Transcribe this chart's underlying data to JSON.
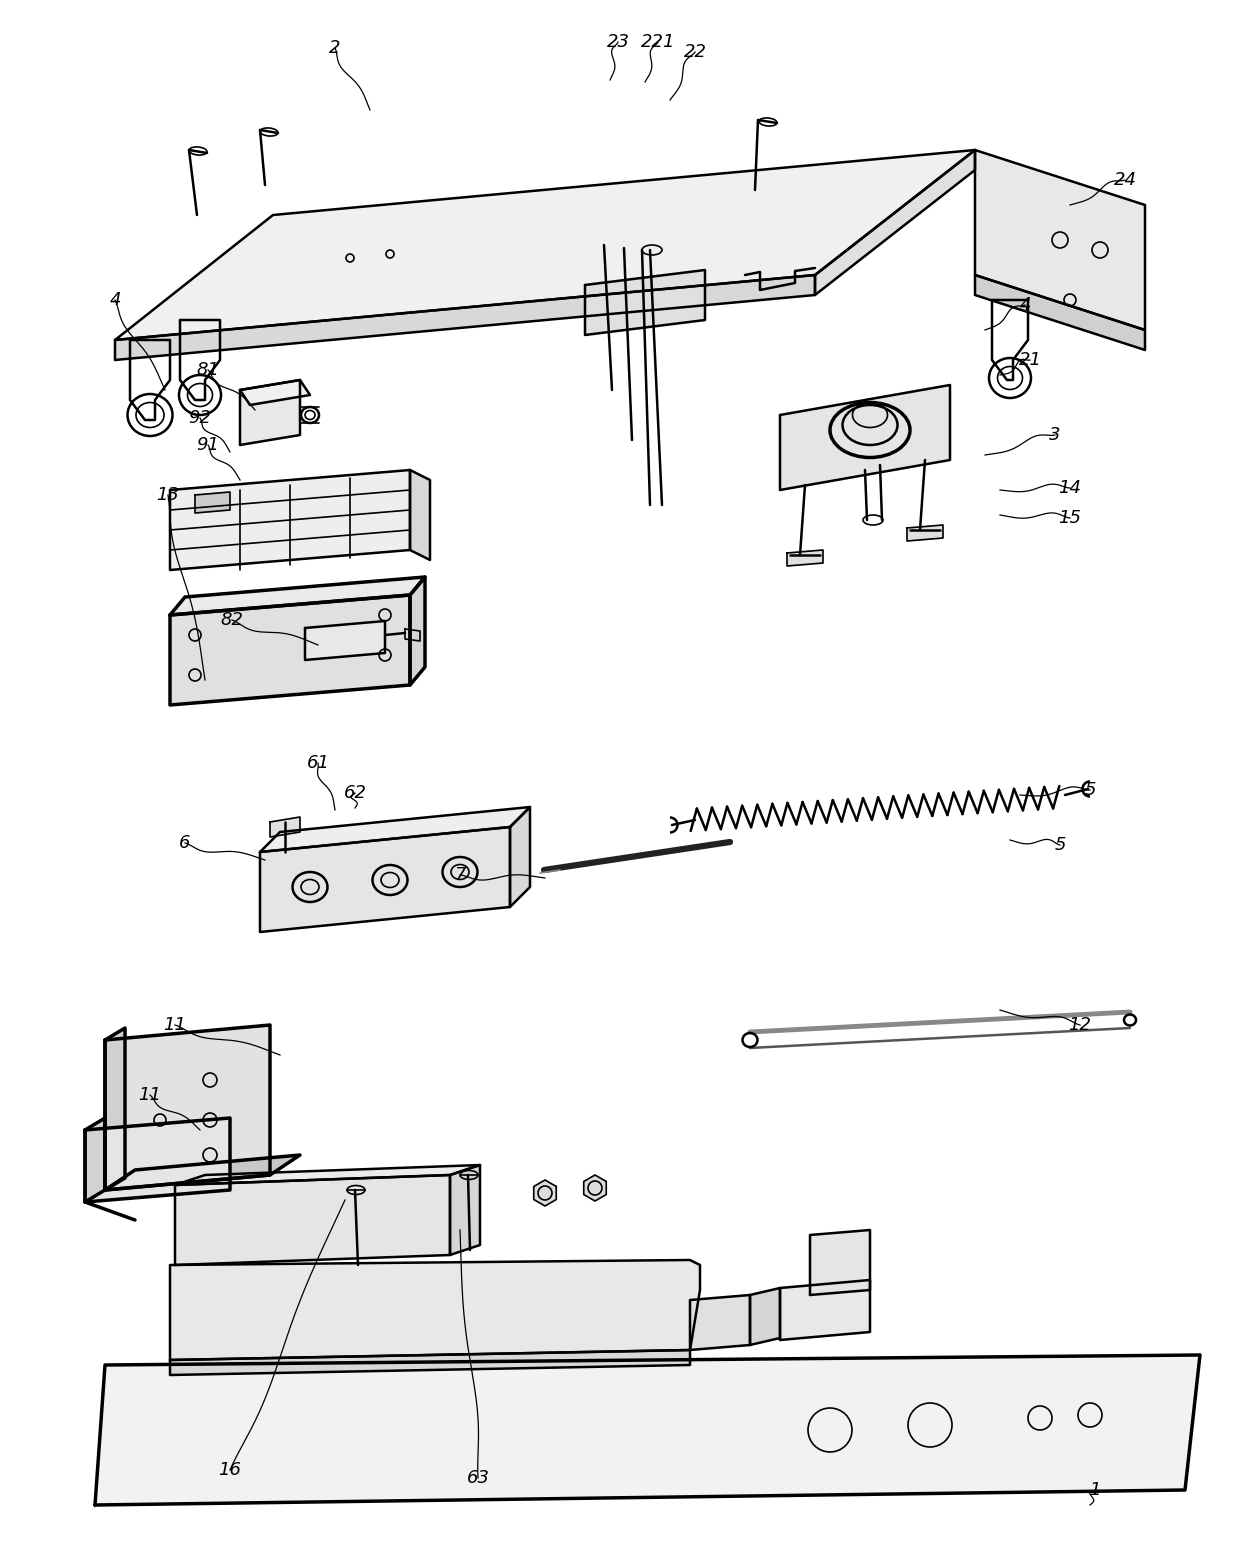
{
  "bg_color": "#ffffff",
  "line_color": "#000000",
  "fig_width": 12.4,
  "fig_height": 15.43,
  "dpi": 100,
  "label_fontsize": 13,
  "labels_info": [
    [
      "1",
      1095,
      1490,
      1090,
      1505,
      0.15
    ],
    [
      "2",
      335,
      48,
      370,
      110,
      0.1
    ],
    [
      "3",
      1055,
      435,
      985,
      455,
      0.15
    ],
    [
      "4",
      115,
      300,
      165,
      390,
      0.2
    ],
    [
      "4",
      1025,
      305,
      985,
      330,
      0.15
    ],
    [
      "5",
      1090,
      790,
      1020,
      795,
      0.1
    ],
    [
      "5",
      1060,
      845,
      1010,
      840,
      0.1
    ],
    [
      "6",
      185,
      843,
      265,
      860,
      0.1
    ],
    [
      "7",
      460,
      875,
      545,
      878,
      0.1
    ],
    [
      "11",
      175,
      1025,
      280,
      1055,
      0.15
    ],
    [
      "11",
      150,
      1095,
      200,
      1130,
      0.15
    ],
    [
      "12",
      1080,
      1025,
      1000,
      1010,
      0.1
    ],
    [
      "13",
      168,
      495,
      205,
      680,
      0.2
    ],
    [
      "14",
      1070,
      488,
      1000,
      490,
      0.1
    ],
    [
      "15",
      1070,
      518,
      1000,
      515,
      0.1
    ],
    [
      "16",
      230,
      1470,
      345,
      1200,
      0.2
    ],
    [
      "21",
      1030,
      360,
      1000,
      375,
      0.1
    ],
    [
      "22",
      695,
      52,
      670,
      100,
      0.1
    ],
    [
      "221",
      658,
      42,
      645,
      82,
      0.1
    ],
    [
      "23",
      618,
      42,
      610,
      80,
      0.1
    ],
    [
      "24",
      1125,
      180,
      1070,
      205,
      0.1
    ],
    [
      "61",
      318,
      763,
      335,
      810,
      0.1
    ],
    [
      "62",
      355,
      793,
      355,
      808,
      0.05
    ],
    [
      "63",
      478,
      1478,
      460,
      1230,
      0.2
    ],
    [
      "81",
      208,
      370,
      255,
      410,
      0.1
    ],
    [
      "82",
      232,
      620,
      318,
      645,
      0.1
    ],
    [
      "91",
      208,
      445,
      240,
      480,
      0.1
    ],
    [
      "92",
      200,
      418,
      230,
      452,
      0.1
    ]
  ]
}
